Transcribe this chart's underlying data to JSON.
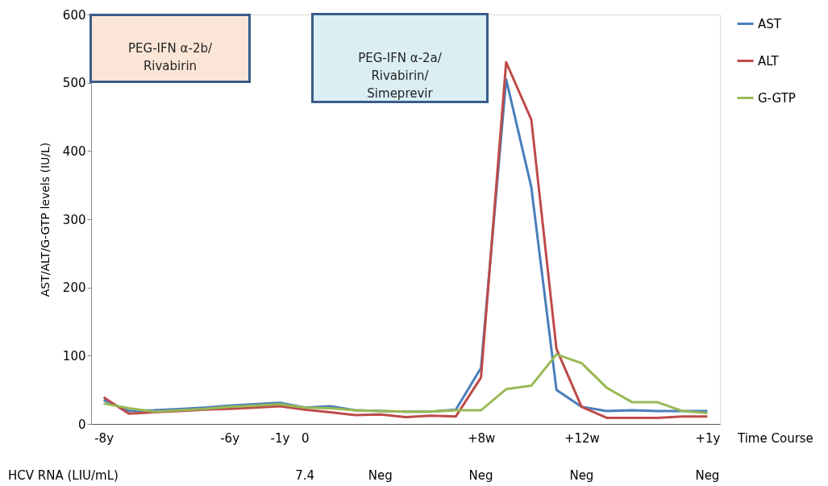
{
  "chart_data": {
    "type": "line",
    "categories": [
      "-8y",
      null,
      null,
      null,
      null,
      "-6y",
      null,
      "-1y",
      "0",
      null,
      null,
      null,
      null,
      null,
      null,
      "+8w",
      null,
      null,
      null,
      "+12w",
      null,
      null,
      null,
      null,
      "+1y"
    ],
    "ylim": [
      0,
      600
    ],
    "yticks": [
      0,
      100,
      200,
      300,
      400,
      500,
      600
    ],
    "xlabel": "Time Course",
    "ylabel": "AST/ALT/G-GTP  levels (IU/L)",
    "series": [
      {
        "name": "AST",
        "color": "#4a7ebb",
        "values": [
          35,
          19,
          20,
          22,
          24,
          27,
          29,
          31,
          24,
          26,
          20,
          19,
          18,
          18,
          21,
          82,
          505,
          347,
          50,
          25,
          19,
          20,
          19,
          19,
          19
        ]
      },
      {
        "name": "ALT",
        "color": "#be4b48",
        "values": [
          39,
          15,
          17,
          19,
          21,
          22,
          24,
          26,
          21,
          17,
          13,
          14,
          10,
          12,
          11,
          68,
          530,
          446,
          110,
          25,
          9,
          9,
          9,
          11,
          11
        ]
      },
      {
        "name": "G-GTP",
        "color": "#98b954",
        "values": [
          30,
          23,
          18,
          20,
          22,
          25,
          27,
          29,
          24,
          23,
          20,
          19,
          18,
          18,
          20,
          20,
          51,
          56,
          102,
          89,
          53,
          32,
          32,
          19,
          16
        ]
      }
    ],
    "annotations": [
      "PEG-IFN α-2b/ Rivabirin",
      "PEG-IFN α-2a/ Rivabirin/ Simeprevir",
      "HCV RNA (LIU/mL)",
      "7.4",
      "Neg",
      "Neg",
      "Neg",
      "Neg"
    ],
    "legend": "right",
    "grid": false,
    "marker": "none",
    "line_style": "solid"
  }
}
